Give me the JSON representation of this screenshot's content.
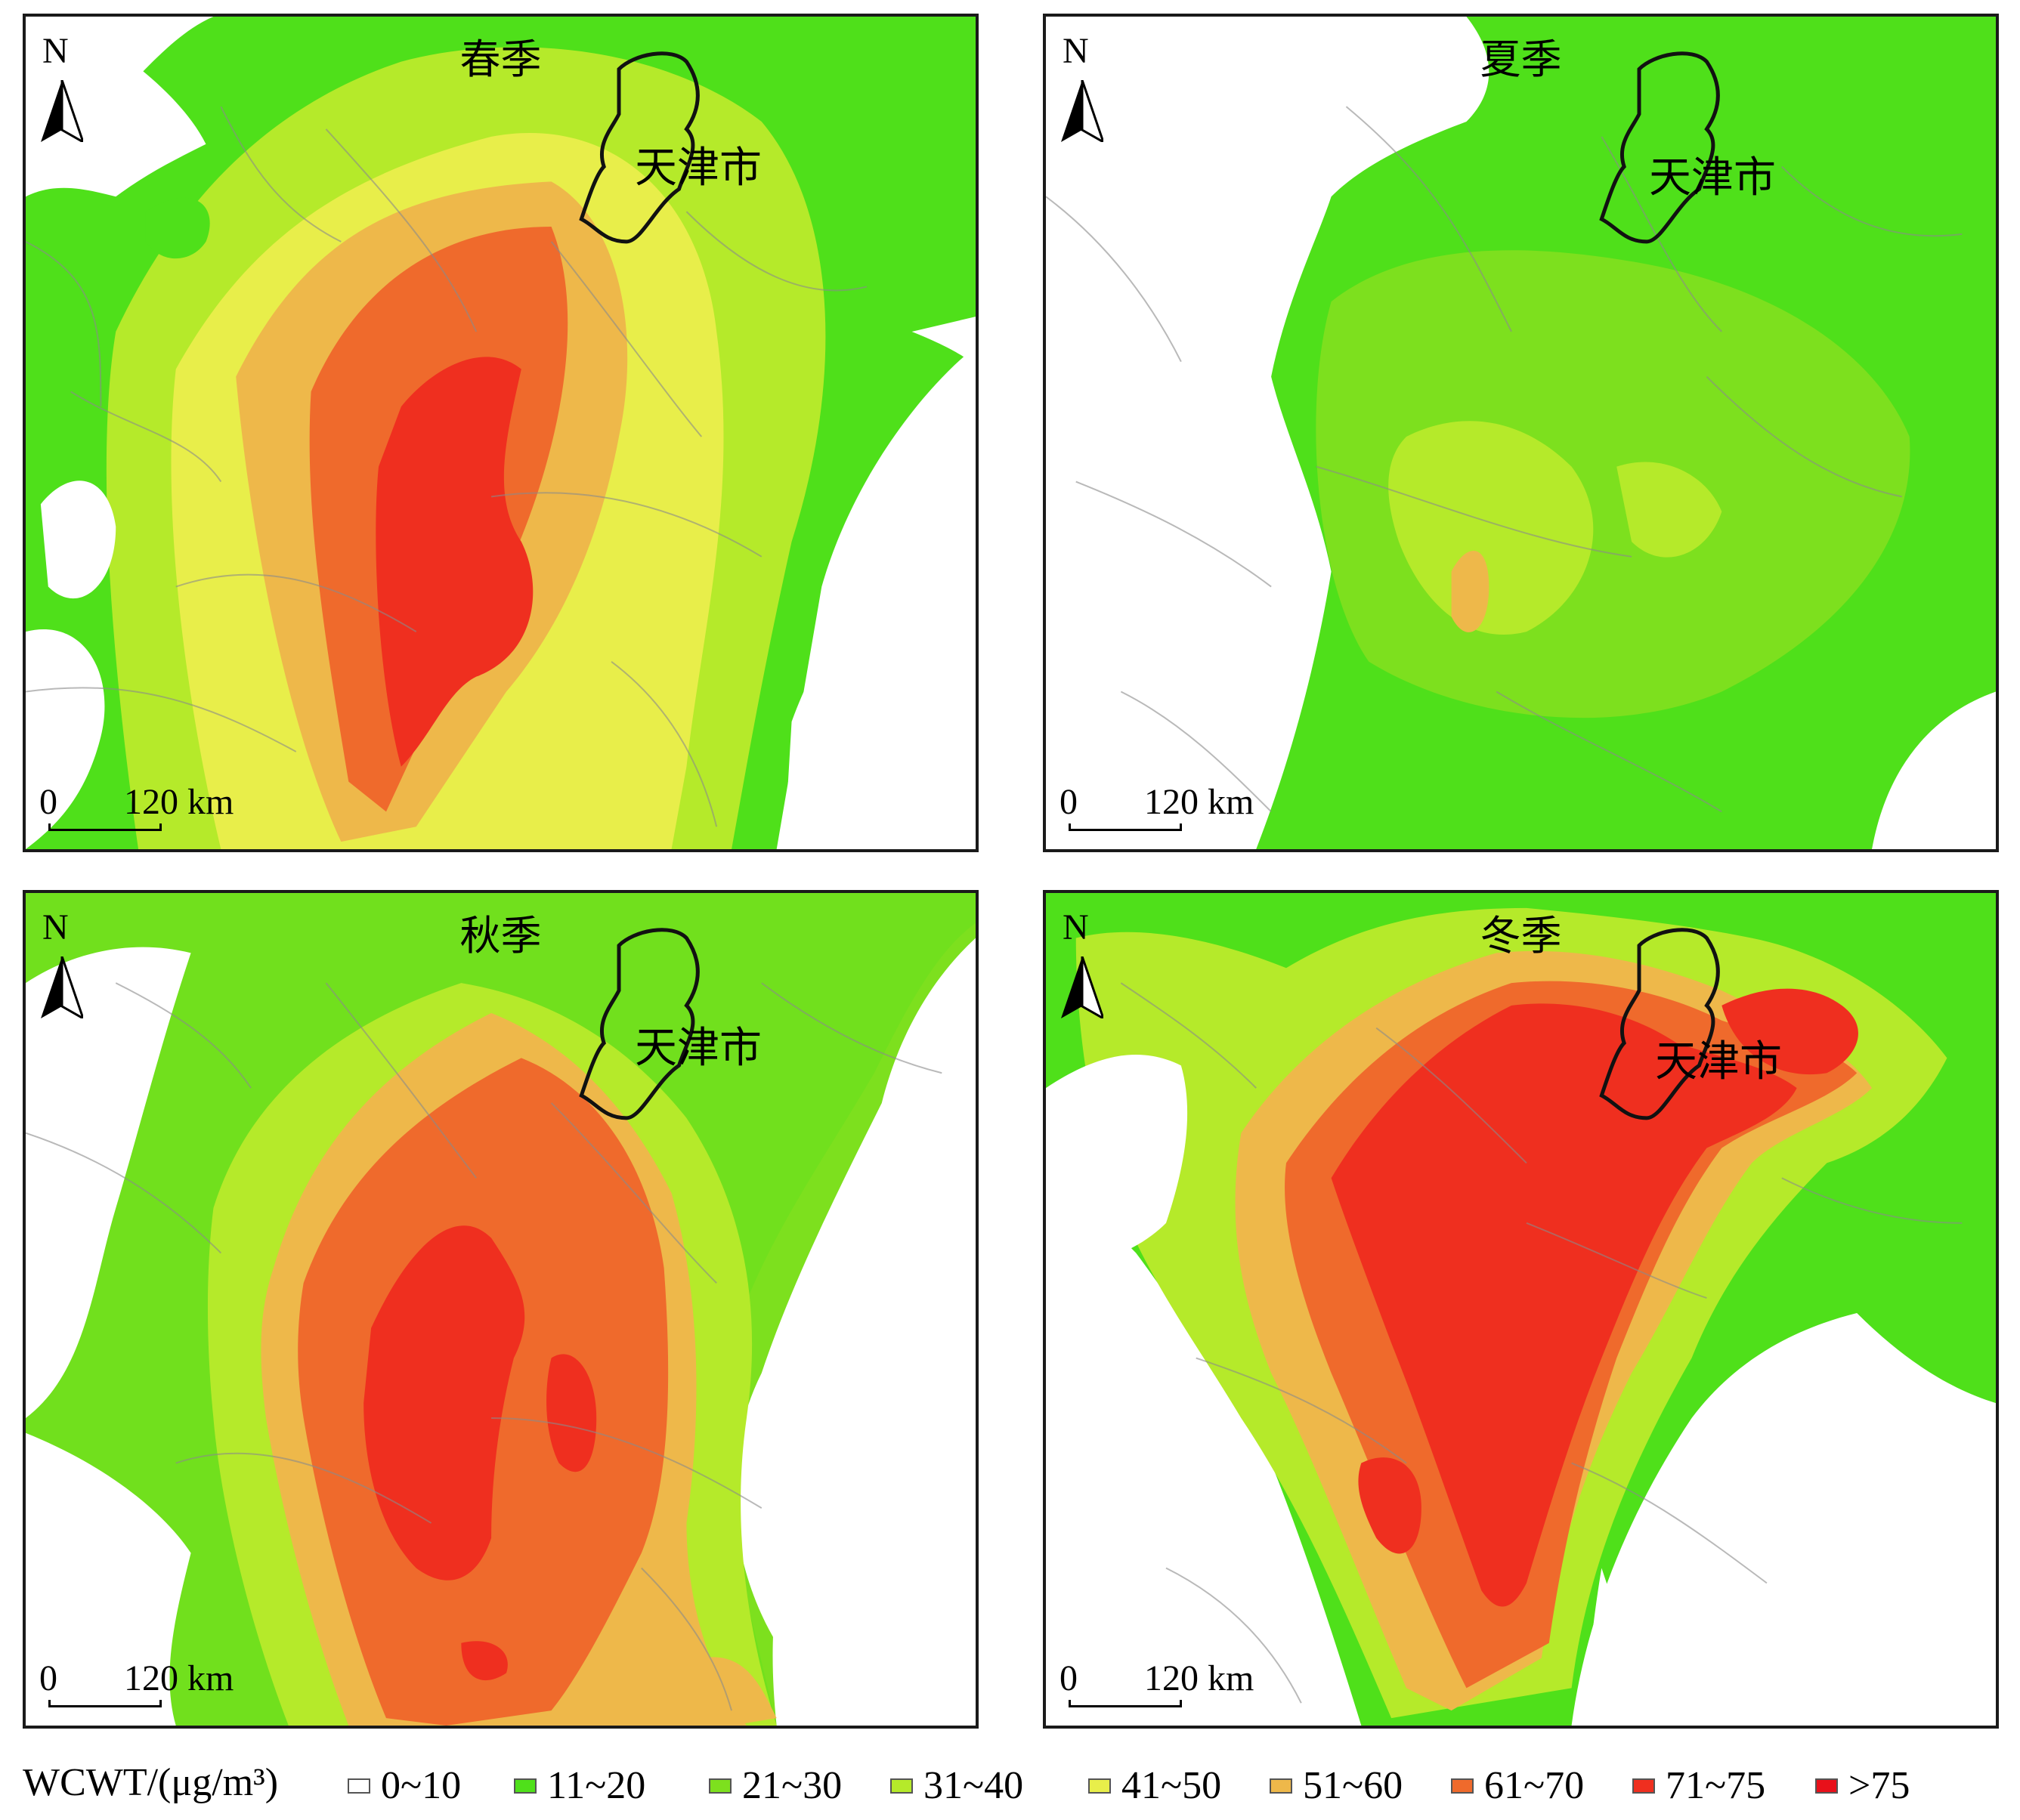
{
  "panels": [
    {
      "season": "春季",
      "city": "天津市"
    },
    {
      "season": "夏季",
      "city": "天津市"
    },
    {
      "season": "秋季",
      "city": "天津市"
    },
    {
      "season": "冬季",
      "city": "天津市"
    }
  ],
  "north_label": "N",
  "scale": {
    "zero": "0",
    "distance": "120 km"
  },
  "legend": {
    "title": "WCWT/(μg/m³)",
    "items": [
      {
        "label": "0~10",
        "color": "#ffffff"
      },
      {
        "label": "11~20",
        "color": "#4fe01a"
      },
      {
        "label": "21~30",
        "color": "#7de01e"
      },
      {
        "label": "31~40",
        "color": "#b5ea2a"
      },
      {
        "label": "41~50",
        "color": "#e8ee4a"
      },
      {
        "label": "51~60",
        "color": "#eeb84a"
      },
      {
        "label": "61~70",
        "color": "#ef6a2c"
      },
      {
        "label": "71~75",
        "color": "#ef2f1f"
      },
      {
        "label": ">75",
        "color": "#e8101a"
      }
    ]
  }
}
